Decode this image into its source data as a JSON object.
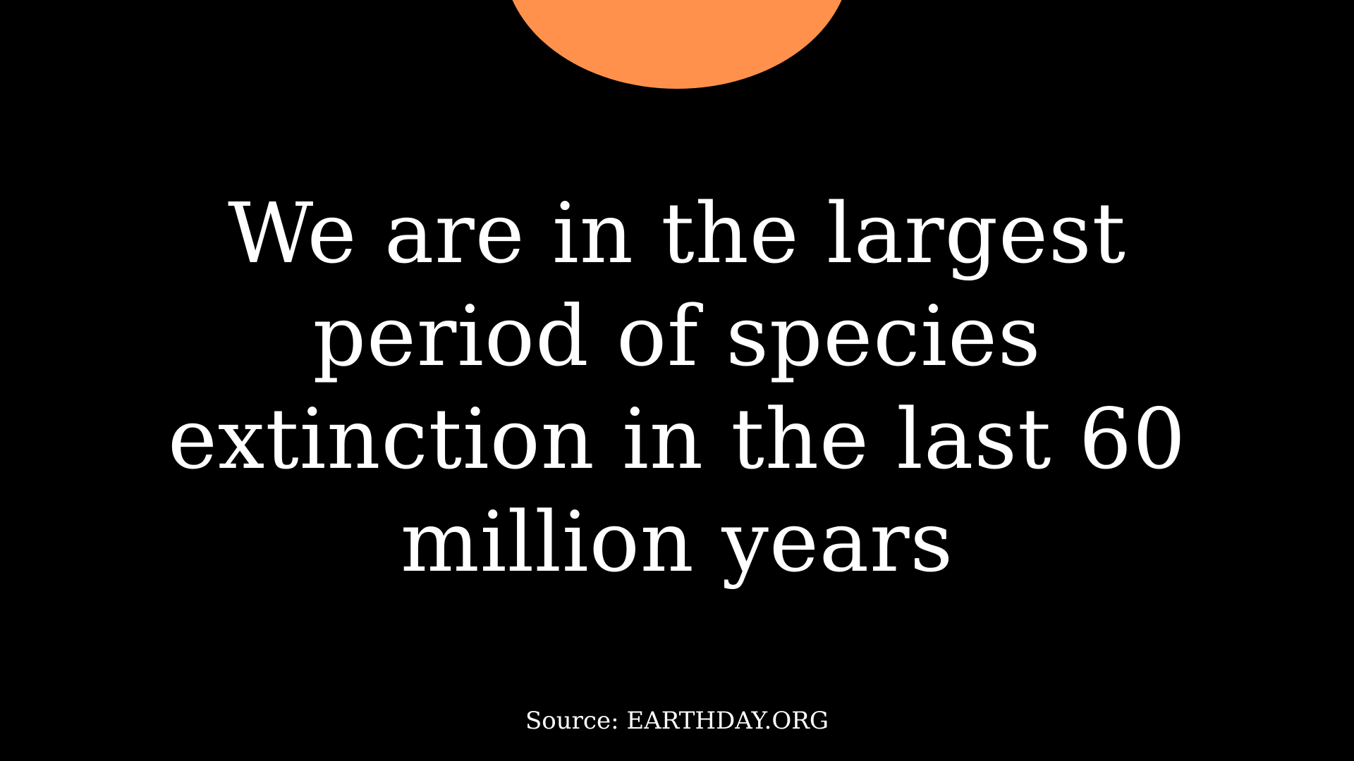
{
  "colors": {
    "background": "#000000",
    "sun": "#FF914D",
    "text": "#FFFFFF"
  },
  "headline": {
    "lines": [
      "We are in the largest",
      "period of species",
      "extinction in the last 60",
      "million years"
    ]
  },
  "source": "Source: EARTHDAY.ORG"
}
